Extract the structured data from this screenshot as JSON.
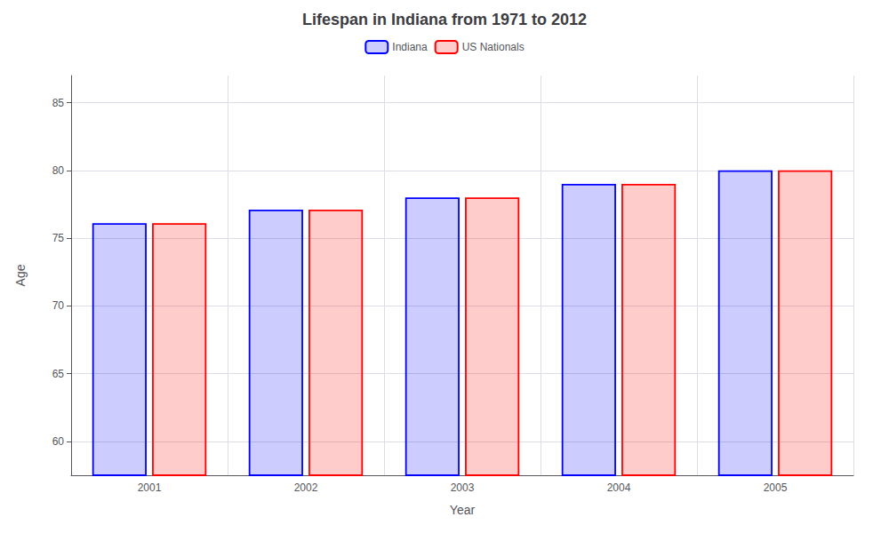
{
  "chart_data": {
    "type": "bar",
    "title": "Lifespan in Indiana from 1971 to 2012",
    "xlabel": "Year",
    "ylabel": "Age",
    "categories": [
      "2001",
      "2002",
      "2003",
      "2004",
      "2005"
    ],
    "series": [
      {
        "name": "Indiana",
        "color": "#0000ff",
        "values": [
          76.1,
          77.1,
          78.0,
          79.0,
          80.0
        ]
      },
      {
        "name": "US Nationals",
        "color": "#ff0000",
        "values": [
          76.1,
          77.1,
          78.0,
          79.0,
          80.0
        ]
      }
    ],
    "ylim": [
      57.5,
      87
    ],
    "yticks": [
      60,
      65,
      70,
      75,
      80,
      85
    ],
    "grid": true,
    "legend": "top"
  }
}
